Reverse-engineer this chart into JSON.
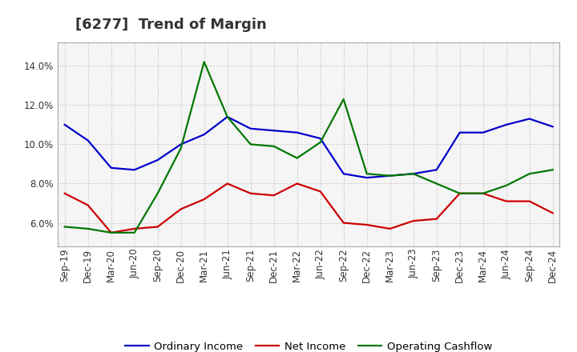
{
  "title": "[6277]  Trend of Margin",
  "x_labels": [
    "Sep-19",
    "Dec-19",
    "Mar-20",
    "Jun-20",
    "Sep-20",
    "Dec-20",
    "Mar-21",
    "Jun-21",
    "Sep-21",
    "Dec-21",
    "Mar-22",
    "Jun-22",
    "Sep-22",
    "Dec-22",
    "Mar-23",
    "Jun-23",
    "Sep-23",
    "Dec-23",
    "Mar-24",
    "Jun-24",
    "Sep-24",
    "Dec-24"
  ],
  "ordinary_income": [
    11.0,
    10.2,
    8.8,
    8.7,
    9.2,
    10.0,
    10.5,
    11.4,
    10.8,
    10.7,
    10.6,
    10.3,
    8.5,
    8.3,
    8.4,
    8.5,
    8.7,
    10.6,
    10.6,
    11.0,
    11.3,
    10.9
  ],
  "net_income": [
    7.5,
    6.9,
    5.5,
    5.7,
    5.8,
    6.7,
    7.2,
    8.0,
    7.5,
    7.4,
    8.0,
    7.6,
    6.0,
    5.9,
    5.7,
    6.1,
    6.2,
    7.5,
    7.5,
    7.1,
    7.1,
    6.5
  ],
  "operating_cashflow": [
    5.8,
    5.7,
    5.5,
    5.5,
    7.5,
    9.8,
    14.2,
    11.4,
    10.0,
    9.9,
    9.3,
    10.1,
    12.3,
    8.5,
    8.4,
    8.5,
    8.0,
    7.5,
    7.5,
    7.9,
    8.5,
    8.7
  ],
  "ylim": [
    4.8,
    15.2
  ],
  "yticks": [
    6.0,
    8.0,
    10.0,
    12.0,
    14.0
  ],
  "line_colors": {
    "ordinary_income": "#0000CC",
    "net_income": "#CC0000",
    "operating_cashflow": "#007700"
  },
  "legend_labels": [
    "Ordinary Income",
    "Net Income",
    "Operating Cashflow"
  ],
  "plot_bg_color": "#F5F5F5",
  "fig_bg_color": "#FFFFFF",
  "grid_color": "#BBBBBB",
  "title_color": "#333333",
  "title_fontsize": 13,
  "axis_fontsize": 8.5,
  "legend_fontsize": 9.5
}
